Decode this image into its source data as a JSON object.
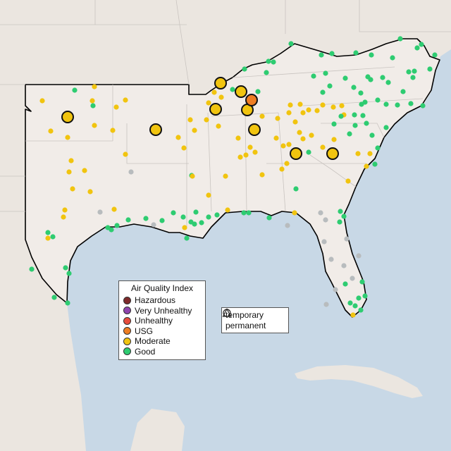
{
  "legend": {
    "title": "Air Quality Index",
    "categories": [
      {
        "label": "Hazardous",
        "color": "#7e2a2a"
      },
      {
        "label": "Very Unhealthy",
        "color": "#8e44ad"
      },
      {
        "label": "Unhealthy",
        "color": "#e74c3c"
      },
      {
        "label": "USG",
        "color": "#ee7d22"
      },
      {
        "label": "Moderate",
        "color": "#f1c40f"
      },
      {
        "label": "Good",
        "color": "#2ecc71"
      }
    ],
    "no_data_color": "#b8bcbe"
  },
  "type_legend": {
    "items": [
      {
        "label": "temporary",
        "shape": "circle-icon"
      },
      {
        "label": "permanent",
        "shape": "triangle-icon"
      }
    ]
  },
  "colors": {
    "water": "#c8d8e6",
    "land_out": "#ebe6e0",
    "land_in": "#f1ece8",
    "boundary": "#000000"
  }
}
